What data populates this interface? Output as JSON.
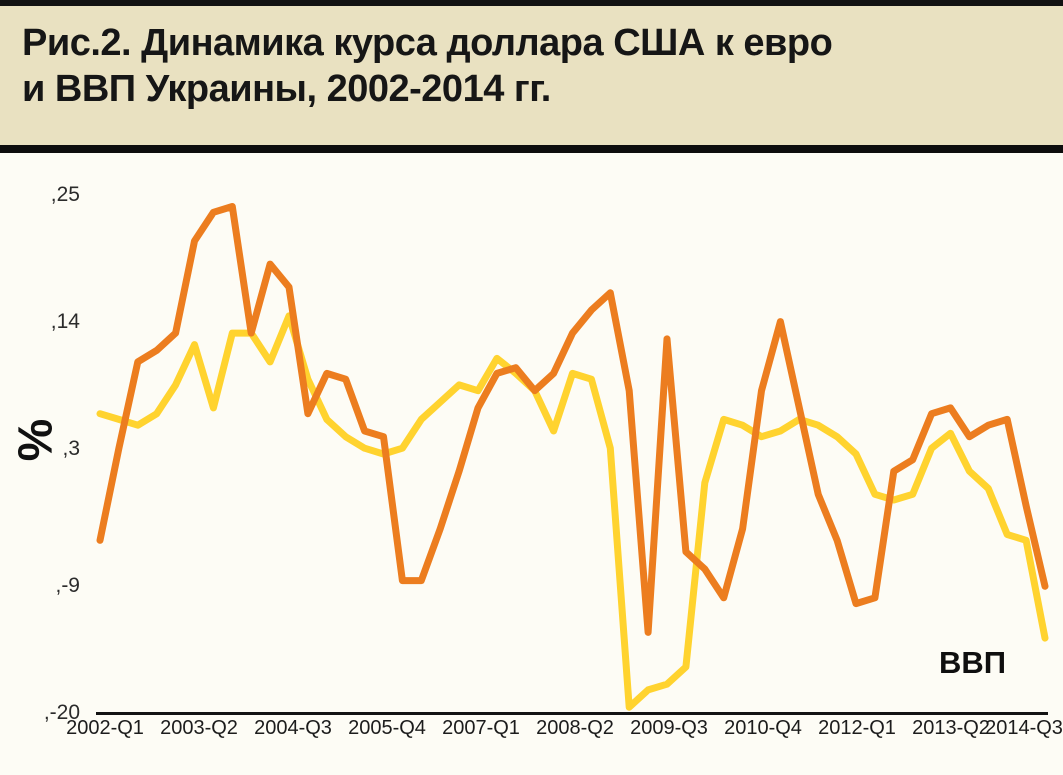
{
  "header": {
    "title_line1": "Рис.2. Динамика курса доллара США к евро",
    "title_line2": "и ВВП Украины, 2002-2014 гг."
  },
  "colors": {
    "top_bar": "#121212",
    "header_bg": "#E9E1C1",
    "divider": "#0D0D0D",
    "chart_bg": "#FDFCF5",
    "title_text": "#161616",
    "gdp_line_yellow": "#FFD32F",
    "usd_eur_line_orange": "#EC7D1F"
  },
  "chart_data": {
    "type": "line",
    "title": "Рис.2. Динамика курса доллара США к евро и ВВП Украины, 2002-2014 гг.",
    "ylabel": "%",
    "ylim": [
      -20,
      25
    ],
    "ytick_labels": [
      ",25",
      ",14",
      ",3",
      ",-9",
      ",-20"
    ],
    "ytick_values": [
      25,
      14,
      3,
      -9,
      -20
    ],
    "xtick_labels": [
      "2002-Q1",
      "2003-Q2",
      "2004-Q3",
      "2005-Q4",
      "2007-Q1",
      "2008-Q2",
      "2009-Q3",
      "2010-Q4",
      "2012-Q1",
      "2013-Q2",
      "2014-Q3"
    ],
    "grid": false,
    "legend_position": "none",
    "annotation": "ВВП",
    "categories": [
      "2002-Q1",
      "2002-Q2",
      "2002-Q3",
      "2002-Q4",
      "2003-Q1",
      "2003-Q2",
      "2003-Q3",
      "2003-Q4",
      "2004-Q1",
      "2004-Q2",
      "2004-Q3",
      "2004-Q4",
      "2005-Q1",
      "2005-Q2",
      "2005-Q3",
      "2005-Q4",
      "2006-Q1",
      "2006-Q2",
      "2006-Q3",
      "2006-Q4",
      "2007-Q1",
      "2007-Q2",
      "2007-Q3",
      "2007-Q4",
      "2008-Q1",
      "2008-Q2",
      "2008-Q3",
      "2008-Q4",
      "2009-Q1",
      "2009-Q2",
      "2009-Q3",
      "2009-Q4",
      "2010-Q1",
      "2010-Q2",
      "2010-Q3",
      "2010-Q4",
      "2011-Q1",
      "2011-Q2",
      "2011-Q3",
      "2011-Q4",
      "2012-Q1",
      "2012-Q2",
      "2012-Q3",
      "2012-Q4",
      "2013-Q1",
      "2013-Q2",
      "2013-Q3",
      "2013-Q4",
      "2014-Q1",
      "2014-Q2",
      "2014-Q3"
    ],
    "series": [
      {
        "name": "ВВП",
        "color": "#FFD32F",
        "values": [
          6,
          5.5,
          5,
          6,
          8.5,
          12,
          6.5,
          13,
          13,
          10.5,
          14.5,
          9,
          5.5,
          4,
          3,
          2.5,
          3,
          5.5,
          7,
          8.5,
          8,
          10.8,
          9.5,
          8,
          4.5,
          9.5,
          9,
          3,
          -19.5,
          -18,
          -17.5,
          -16,
          0,
          5.5,
          5,
          4,
          4.5,
          5.5,
          5,
          4,
          2.5,
          -1,
          -1.5,
          -1,
          3,
          4.3,
          1,
          -0.5,
          -4.5,
          -5,
          -13.5
        ]
      },
      {
        "name": "Курс доллара США к евро",
        "color": "#EC7D1F",
        "values": [
          -5,
          3,
          10.5,
          11.5,
          13,
          21,
          23.5,
          24,
          13,
          19,
          17,
          6,
          9.5,
          9,
          4.5,
          4,
          -8.5,
          -8.5,
          -4,
          1,
          6.5,
          9.5,
          10,
          8,
          9.5,
          13,
          15,
          16.5,
          8,
          -13,
          12.5,
          -6,
          -7.5,
          -10,
          -4,
          8,
          14,
          6.5,
          -1,
          -5,
          -10.5,
          -10,
          1,
          2,
          6,
          6.5,
          4,
          5,
          5.5,
          -2,
          -9
        ]
      }
    ]
  }
}
